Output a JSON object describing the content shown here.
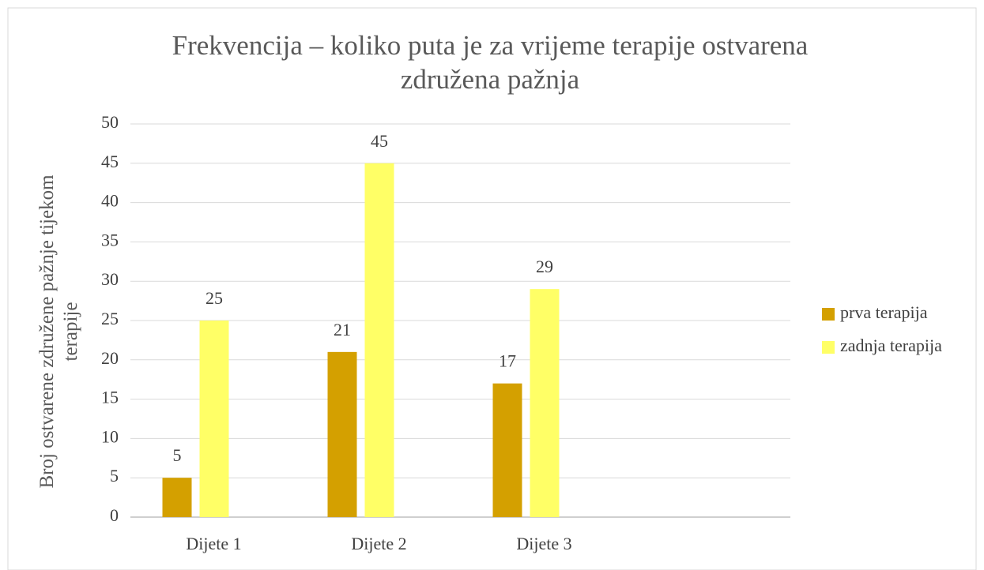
{
  "chart_data": {
    "type": "bar",
    "title": "Frekvencija – koliko puta je za vrijeme terapije ostvarena združena pažnja",
    "y_label": "Broj ostvarene združene pažnje tijekom terapije",
    "categories": [
      "Dijete 1",
      "Dijete 2",
      "Dijete 3"
    ],
    "series": [
      {
        "name": "prva terapija",
        "color": "#d4a000",
        "values": [
          5,
          21,
          17
        ]
      },
      {
        "name": "zadnja terapija",
        "color": "#ffff66",
        "values": [
          25,
          45,
          29
        ]
      }
    ],
    "ylim": [
      0,
      50
    ],
    "yticks": [
      0,
      5,
      10,
      15,
      20,
      25,
      30,
      35,
      40,
      45,
      50
    ],
    "grid": true,
    "legend": "right",
    "data_labels": true
  }
}
